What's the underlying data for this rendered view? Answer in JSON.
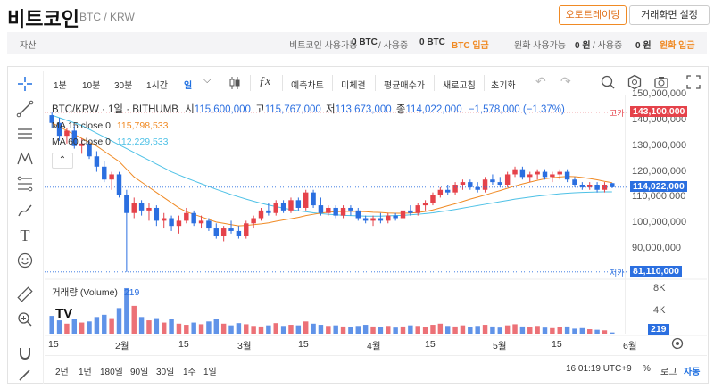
{
  "header": {
    "title": "비트코인",
    "pair": "BTC / KRW",
    "auto_trading": "오토트레이딩",
    "screen_settings": "거래화면 설정"
  },
  "balance": {
    "label": "자산",
    "btc_available_label": "비트코인 사용가능",
    "btc_available": "0 BTC",
    "btc_in_use_label": "/ 사용중",
    "btc_in_use": "0 BTC",
    "btc_deposit": "BTC 입금",
    "krw_available_label": "원화 사용가능",
    "krw_available": "0 원",
    "krw_in_use_label": "/ 사용중",
    "krw_in_use": "0 원",
    "krw_deposit": "원화 입금"
  },
  "toolbar": {
    "intervals": [
      "1분",
      "10분",
      "30분",
      "1시간",
      "일"
    ],
    "selected_interval": "일",
    "buttons": [
      "예측차트",
      "미체결",
      "평균매수가",
      "새로고침",
      "초기화"
    ]
  },
  "legend": {
    "symbol": "BTC/KRW · 1일 · BITHUMB",
    "o_label": "시",
    "o": "115,600,000",
    "h_label": "고",
    "h": "115,767,000",
    "l_label": "저",
    "l": "113,673,000",
    "c_label": "종",
    "c": "114,022,000",
    "change": "−1,578,000 (−1.37%)",
    "ma15_label": "MA 15 close 0",
    "ma15": "115,798,533",
    "ma60_label": "MA 60 close 0",
    "ma60": "112,229,533",
    "volume_label": "거래량 (Volume)",
    "volume": "219"
  },
  "price_axis": {
    "ticks": [
      "150,000,000",
      "140,000,000",
      "130,000,000",
      "120,000,000",
      "110,000,000",
      "100,000,000",
      "90,000,000"
    ],
    "high_tag": "고가",
    "high_value": "143,100,000",
    "low_tag": "저가",
    "low_value": "81,110,000",
    "current_value": "114,022,000"
  },
  "volume_axis": {
    "ticks": [
      "8K",
      "4K"
    ],
    "current": "219"
  },
  "time_axis": {
    "labels": [
      "15",
      "2월",
      "15",
      "3월",
      "15",
      "4월",
      "15",
      "5월",
      "15",
      "6월"
    ]
  },
  "bottom": {
    "ranges": [
      "2년",
      "1년",
      "180일",
      "90일",
      "30일",
      "1주",
      "1일"
    ],
    "clock": "16:01:19 UTC+9",
    "pct": "%",
    "log": "로그",
    "auto": "자동"
  },
  "colors": {
    "up": "#e5424a",
    "down": "#2b6fe0",
    "ma15": "#f08a24",
    "ma60": "#4ec1e6",
    "accent": "#f08a24"
  },
  "chart_data": {
    "type": "candlestick",
    "title": "BTC/KRW · 1일 · BITHUMB",
    "ylim": [
      80000000,
      150000000
    ],
    "candles": [
      [
        142000000,
        143100000,
        137000000,
        139000000
      ],
      [
        139000000,
        141000000,
        132000000,
        134000000
      ],
      [
        134000000,
        137000000,
        131000000,
        136000000
      ],
      [
        136000000,
        138000000,
        129000000,
        130000000
      ],
      [
        130000000,
        133000000,
        127000000,
        131000000
      ],
      [
        131000000,
        132000000,
        125000000,
        126000000
      ],
      [
        126000000,
        128000000,
        120000000,
        122000000
      ],
      [
        122000000,
        124000000,
        116000000,
        117000000
      ],
      [
        117000000,
        120000000,
        113000000,
        119000000
      ],
      [
        119000000,
        120000000,
        110000000,
        111000000
      ],
      [
        111000000,
        113000000,
        81110000,
        104000000
      ],
      [
        104000000,
        110000000,
        102000000,
        108000000
      ],
      [
        108000000,
        109000000,
        103000000,
        105000000
      ],
      [
        105000000,
        108000000,
        101000000,
        106000000
      ],
      [
        106000000,
        107000000,
        99000000,
        101000000
      ],
      [
        101000000,
        104000000,
        98000000,
        102000000
      ],
      [
        102000000,
        103000000,
        97000000,
        99000000
      ],
      [
        99000000,
        103000000,
        96000000,
        101000000
      ],
      [
        101000000,
        106000000,
        100000000,
        104000000
      ],
      [
        104000000,
        105000000,
        99000000,
        100000000
      ],
      [
        100000000,
        103000000,
        98000000,
        101000000
      ],
      [
        101000000,
        102000000,
        97000000,
        98000000
      ],
      [
        98000000,
        100000000,
        94000000,
        95000000
      ],
      [
        95000000,
        99000000,
        93000000,
        98000000
      ],
      [
        98000000,
        101000000,
        96000000,
        97000000
      ],
      [
        97000000,
        99000000,
        94000000,
        95000000
      ],
      [
        95000000,
        101000000,
        94000000,
        100000000
      ],
      [
        100000000,
        103000000,
        98000000,
        102000000
      ],
      [
        102000000,
        106000000,
        101000000,
        105000000
      ],
      [
        105000000,
        108000000,
        103000000,
        104000000
      ],
      [
        104000000,
        109000000,
        103000000,
        108000000
      ],
      [
        108000000,
        109000000,
        104000000,
        105000000
      ],
      [
        105000000,
        110000000,
        104000000,
        109000000
      ],
      [
        109000000,
        110000000,
        105000000,
        106000000
      ],
      [
        106000000,
        113000000,
        105000000,
        112000000
      ],
      [
        112000000,
        113000000,
        106000000,
        107000000
      ],
      [
        107000000,
        110000000,
        103000000,
        104000000
      ],
      [
        104000000,
        107000000,
        103000000,
        106000000
      ],
      [
        106000000,
        107000000,
        102000000,
        103000000
      ],
      [
        103000000,
        107000000,
        102000000,
        106000000
      ],
      [
        106000000,
        107000000,
        103000000,
        105000000
      ],
      [
        105000000,
        106000000,
        101000000,
        102000000
      ],
      [
        102000000,
        103000000,
        100000000,
        101000000
      ],
      [
        101000000,
        103000000,
        99000000,
        102000000
      ],
      [
        102000000,
        104000000,
        100000000,
        101000000
      ],
      [
        101000000,
        104000000,
        100000000,
        103000000
      ],
      [
        103000000,
        104000000,
        101000000,
        102000000
      ],
      [
        102000000,
        106000000,
        101000000,
        105000000
      ],
      [
        105000000,
        107000000,
        103000000,
        104000000
      ],
      [
        104000000,
        108000000,
        103000000,
        107000000
      ],
      [
        107000000,
        109000000,
        105000000,
        108000000
      ],
      [
        108000000,
        112000000,
        107000000,
        111000000
      ],
      [
        111000000,
        114000000,
        110000000,
        113000000
      ],
      [
        113000000,
        115000000,
        111000000,
        112000000
      ],
      [
        112000000,
        116000000,
        111000000,
        115000000
      ],
      [
        115000000,
        117000000,
        113000000,
        116000000
      ],
      [
        116000000,
        117000000,
        113000000,
        114000000
      ],
      [
        114000000,
        116000000,
        112000000,
        113000000
      ],
      [
        113000000,
        118000000,
        112000000,
        117000000
      ],
      [
        117000000,
        119000000,
        115000000,
        116000000
      ],
      [
        116000000,
        118000000,
        114000000,
        115000000
      ],
      [
        115000000,
        120000000,
        114000000,
        119000000
      ],
      [
        119000000,
        122000000,
        118000000,
        121000000
      ],
      [
        121000000,
        122000000,
        117000000,
        118000000
      ],
      [
        118000000,
        120000000,
        116000000,
        119000000
      ],
      [
        119000000,
        121000000,
        117000000,
        120000000
      ],
      [
        120000000,
        121000000,
        117000000,
        118000000
      ],
      [
        118000000,
        120000000,
        116000000,
        119000000
      ],
      [
        119000000,
        121000000,
        117000000,
        120000000
      ],
      [
        120000000,
        121000000,
        116000000,
        117000000
      ],
      [
        117000000,
        118000000,
        114000000,
        115000000
      ],
      [
        115000000,
        116000000,
        113000000,
        114000000
      ],
      [
        114000000,
        116000000,
        113000000,
        115000000
      ],
      [
        115000000,
        116000000,
        112000000,
        113000000
      ],
      [
        113000000,
        116000000,
        112000000,
        115000000
      ],
      [
        115600000,
        115767000,
        113673000,
        114022000
      ]
    ],
    "volume": [
      3200,
      2400,
      1800,
      2600,
      2000,
      2200,
      3000,
      3400,
      2800,
      4600,
      8200,
      5000,
      3000,
      2400,
      2800,
      2000,
      2600,
      1800,
      1600,
      2000,
      1700,
      2200,
      2600,
      1800,
      1500,
      1900,
      1700,
      1400,
      1300,
      1500,
      1900,
      1400,
      1600,
      1500,
      2200,
      1800,
      1600,
      1400,
      1500,
      1300,
      1200,
      1400,
      1600,
      1300,
      1200,
      1400,
      1100,
      1300,
      1500,
      1400,
      1200,
      1600,
      1800,
      1400,
      1300,
      1500,
      1200,
      1400,
      1600,
      1300,
      1100,
      1500,
      1700,
      1300,
      1200,
      1400,
      1100,
      1000,
      1200,
      1300,
      900,
      1000,
      800,
      700,
      600,
      219
    ],
    "ma15": [
      139000000,
      137500000,
      136000000,
      134500000,
      133000000,
      131500000,
      130000000,
      128000000,
      126000000,
      124000000,
      121000000,
      118000000,
      116000000,
      114000000,
      112000000,
      110000000,
      108000000,
      106000000,
      104500000,
      103500000,
      102500000,
      101500000,
      100500000,
      100000000,
      99500000,
      99000000,
      99200000,
      99500000,
      99800000,
      100200000,
      100800000,
      101300000,
      101800000,
      102300000,
      103000000,
      103500000,
      104000000,
      104300000,
      104500000,
      104600000,
      104700000,
      104600000,
      104500000,
      104300000,
      104200000,
      104000000,
      103900000,
      103900000,
      104000000,
      104200000,
      104600000,
      105200000,
      106000000,
      106800000,
      107600000,
      108500000,
      109400000,
      110200000,
      111000000,
      111900000,
      112700000,
      113600000,
      114500000,
      115300000,
      116000000,
      116700000,
      117300000,
      117700000,
      118000000,
      118200000,
      118100000,
      117800000,
      117400000,
      116900000,
      116300000,
      115798533
    ],
    "ma60": [
      142000000,
      141000000,
      140000000,
      139000000,
      138000000,
      136500000,
      135000000,
      133500000,
      132000000,
      130500000,
      129000000,
      127500000,
      126000000,
      124500000,
      123000000,
      121500000,
      120000000,
      118800000,
      117600000,
      116500000,
      115400000,
      114300000,
      113200000,
      112200000,
      111200000,
      110300000,
      109400000,
      108600000,
      107800000,
      107100000,
      106500000,
      105900000,
      105400000,
      104900000,
      104500000,
      104100000,
      103800000,
      103500000,
      103300000,
      103100000,
      103000000,
      102900000,
      102800000,
      102800000,
      102800000,
      102900000,
      103000000,
      103100000,
      103300000,
      103500000,
      103800000,
      104100000,
      104500000,
      104900000,
      105400000,
      105900000,
      106400000,
      106900000,
      107400000,
      107900000,
      108400000,
      108900000,
      109400000,
      109800000,
      110200000,
      110600000,
      110900000,
      111200000,
      111500000,
      111700000,
      111900000,
      112000000,
      112100000,
      112200000,
      112220000,
      112229533
    ],
    "highest": 143100000,
    "lowest": 81110000,
    "current": 114022000,
    "volume_ylim": [
      0,
      9000
    ]
  }
}
